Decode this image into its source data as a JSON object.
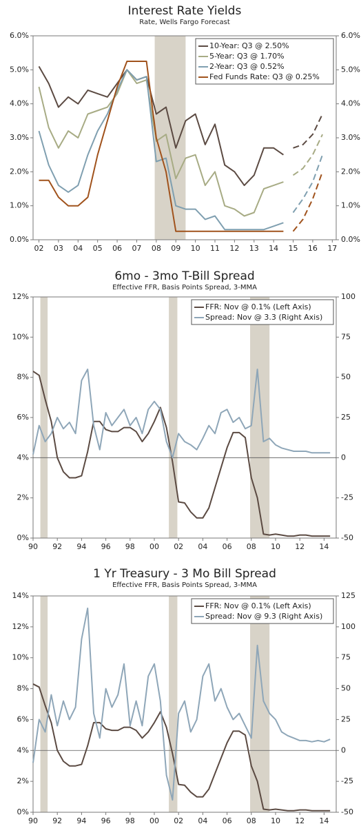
{
  "chart_data": [
    {
      "type": "line",
      "title": "Interest Rate Yields",
      "subtitle": "Rate, Wells Fargo Forecast",
      "x": [
        2002,
        2002.5,
        2003,
        2003.5,
        2004,
        2004.5,
        2005,
        2005.5,
        2006,
        2006.5,
        2007,
        2007.5,
        2008,
        2008.5,
        2009,
        2009.5,
        2010,
        2010.5,
        2011,
        2011.5,
        2012,
        2012.5,
        2013,
        2013.5,
        2014,
        2014.5,
        2015,
        2015.5,
        2016,
        2016.5
      ],
      "series": [
        {
          "name": "10-Year: Q3 @ 2.50%",
          "color": "#5b4a42",
          "values": [
            5.1,
            4.6,
            3.9,
            4.2,
            4.0,
            4.4,
            4.3,
            4.2,
            4.6,
            5.0,
            4.7,
            4.8,
            3.7,
            3.9,
            2.7,
            3.5,
            3.7,
            2.8,
            3.4,
            2.2,
            2.0,
            1.6,
            1.9,
            2.7,
            2.7,
            2.5,
            2.7,
            2.8,
            3.1,
            3.7
          ]
        },
        {
          "name": "5-Year: Q3 @ 1.70%",
          "color": "#a7ab84",
          "values": [
            4.5,
            3.3,
            2.7,
            3.2,
            3.0,
            3.7,
            3.8,
            3.9,
            4.3,
            5.0,
            4.6,
            4.7,
            2.9,
            3.1,
            1.8,
            2.4,
            2.5,
            1.6,
            2.0,
            1.0,
            0.9,
            0.7,
            0.8,
            1.5,
            1.6,
            1.7,
            1.9,
            2.1,
            2.5,
            3.1
          ]
        },
        {
          "name": "2-Year: Q3 @ 0.52%",
          "color": "#7f9fb0",
          "values": [
            3.2,
            2.2,
            1.6,
            1.4,
            1.6,
            2.5,
            3.2,
            3.7,
            4.4,
            5.0,
            4.7,
            4.8,
            2.3,
            2.4,
            1.0,
            0.9,
            0.9,
            0.6,
            0.7,
            0.3,
            0.3,
            0.3,
            0.3,
            0.3,
            0.4,
            0.5,
            0.8,
            1.2,
            1.7,
            2.5
          ]
        },
        {
          "name": "Fed Funds Rate: Q3 @ 0.25%",
          "color": "#a0521c",
          "values": [
            1.75,
            1.75,
            1.25,
            1.0,
            1.0,
            1.25,
            2.5,
            3.5,
            4.5,
            5.25,
            5.25,
            5.25,
            3.0,
            2.0,
            0.25,
            0.25,
            0.25,
            0.25,
            0.25,
            0.25,
            0.25,
            0.25,
            0.25,
            0.25,
            0.25,
            0.25,
            0.25,
            0.6,
            1.2,
            2.0
          ]
        }
      ],
      "dashed_from": 2015,
      "shading": [
        [
          2007.92,
          2009.5
        ]
      ],
      "xlim": [
        2001.7,
        2017.2
      ],
      "xticks": [
        {
          "value": 2002,
          "label": "02"
        },
        {
          "value": 2003,
          "label": "03"
        },
        {
          "value": 2004,
          "label": "04"
        },
        {
          "value": 2005,
          "label": "05"
        },
        {
          "value": 2006,
          "label": "06"
        },
        {
          "value": 2007,
          "label": "07"
        },
        {
          "value": 2008,
          "label": "08"
        },
        {
          "value": 2009,
          "label": "09"
        },
        {
          "value": 2010,
          "label": "10"
        },
        {
          "value": 2011,
          "label": "11"
        },
        {
          "value": 2012,
          "label": "12"
        },
        {
          "value": 2013,
          "label": "13"
        },
        {
          "value": 2014,
          "label": "14"
        },
        {
          "value": 2015,
          "label": "15"
        },
        {
          "value": 2016,
          "label": "16"
        },
        {
          "value": 2017,
          "label": "17"
        }
      ],
      "ylim": [
        0,
        6
      ],
      "yticks": [
        {
          "value": 0,
          "label": "0.0%"
        },
        {
          "value": 1,
          "label": "1.0%"
        },
        {
          "value": 2,
          "label": "2.0%"
        },
        {
          "value": 3,
          "label": "3.0%"
        },
        {
          "value": 4,
          "label": "4.0%"
        },
        {
          "value": 5,
          "label": "5.0%"
        },
        {
          "value": 6,
          "label": "6.0%"
        }
      ],
      "y2lim": [
        0,
        6
      ],
      "y2ticks": [
        {
          "value": 0,
          "label": "0.0%"
        },
        {
          "value": 1,
          "label": "1.0%"
        },
        {
          "value": 2,
          "label": "2.0%"
        },
        {
          "value": 3,
          "label": "3.0%"
        },
        {
          "value": 4,
          "label": "4.0%"
        },
        {
          "value": 5,
          "label": "5.0%"
        },
        {
          "value": 6,
          "label": "6.0%"
        }
      ],
      "legend": "upper right"
    },
    {
      "type": "line",
      "title": "6mo - 3mo T-Bill Spread",
      "subtitle": "Effective FFR, Basis Points Spread, 3-MMA",
      "x": [
        1990,
        1990.5,
        1991,
        1991.5,
        1992,
        1992.5,
        1993,
        1993.5,
        1994,
        1994.5,
        1995,
        1995.5,
        1996,
        1996.5,
        1997,
        1997.5,
        1998,
        1998.5,
        1999,
        1999.5,
        2000,
        2000.5,
        2001,
        2001.5,
        2002,
        2002.5,
        2003,
        2003.5,
        2004,
        2004.5,
        2005,
        2005.5,
        2006,
        2006.5,
        2007,
        2007.5,
        2008,
        2008.5,
        2009,
        2009.5,
        2010,
        2010.5,
        2011,
        2011.5,
        2012,
        2012.5,
        2013,
        2013.5,
        2014,
        2014.5
      ],
      "series": [
        {
          "name": "FFR: Nov @ 0.1% (Left Axis)",
          "color": "#5b4a42",
          "values": [
            8.3,
            8.1,
            6.9,
            5.8,
            4.0,
            3.3,
            3.0,
            3.0,
            3.1,
            4.3,
            5.8,
            5.8,
            5.4,
            5.3,
            5.3,
            5.5,
            5.5,
            5.3,
            4.8,
            5.2,
            5.8,
            6.5,
            5.5,
            3.8,
            1.8,
            1.75,
            1.3,
            1.0,
            1.0,
            1.5,
            2.5,
            3.5,
            4.5,
            5.25,
            5.25,
            5.0,
            3.0,
            2.0,
            0.2,
            0.15,
            0.2,
            0.15,
            0.1,
            0.1,
            0.15,
            0.15,
            0.1,
            0.1,
            0.1,
            0.1
          ]
        },
        {
          "name": "Spread: Nov @ 3.3 (Right Axis)",
          "color": "#8ea6b8",
          "axis": "y2",
          "values": [
            2,
            20,
            10,
            15,
            25,
            18,
            22,
            15,
            48,
            55,
            20,
            5,
            28,
            20,
            25,
            30,
            20,
            25,
            15,
            30,
            35,
            30,
            10,
            0,
            15,
            10,
            8,
            5,
            12,
            20,
            15,
            28,
            30,
            22,
            25,
            18,
            20,
            55,
            10,
            12,
            8,
            6,
            5,
            4,
            4,
            4,
            3,
            3,
            3,
            3
          ]
        }
      ],
      "shading": [
        [
          1990.6,
          1991.2
        ],
        [
          2001.2,
          2001.9
        ],
        [
          2007.9,
          2009.5
        ]
      ],
      "reference_y2": 0,
      "xlim": [
        1990,
        2015
      ],
      "xticks": [
        {
          "value": 1990,
          "label": "90"
        },
        {
          "value": 1992,
          "label": "92"
        },
        {
          "value": 1994,
          "label": "94"
        },
        {
          "value": 1996,
          "label": "96"
        },
        {
          "value": 1998,
          "label": "98"
        },
        {
          "value": 2000,
          "label": "00"
        },
        {
          "value": 2002,
          "label": "02"
        },
        {
          "value": 2004,
          "label": "04"
        },
        {
          "value": 2006,
          "label": "06"
        },
        {
          "value": 2008,
          "label": "08"
        },
        {
          "value": 2010,
          "label": "10"
        },
        {
          "value": 2012,
          "label": "12"
        },
        {
          "value": 2014,
          "label": "14"
        }
      ],
      "ylim": [
        0,
        12
      ],
      "yticks": [
        {
          "value": 0,
          "label": "0%"
        },
        {
          "value": 2,
          "label": "2%"
        },
        {
          "value": 4,
          "label": "4%"
        },
        {
          "value": 6,
          "label": "6%"
        },
        {
          "value": 8,
          "label": "8%"
        },
        {
          "value": 10,
          "label": "10%"
        },
        {
          "value": 12,
          "label": "12%"
        }
      ],
      "y2lim": [
        -50,
        100
      ],
      "y2ticks": [
        -50,
        -25,
        0,
        25,
        50,
        75,
        100
      ],
      "legend": "upper right"
    },
    {
      "type": "line",
      "title": "1 Yr Treasury - 3 Mo Bill Spread",
      "subtitle": "Effective FFR, Basis Points Spread, 3-MMA",
      "x": [
        1990,
        1990.5,
        1991,
        1991.5,
        1992,
        1992.5,
        1993,
        1993.5,
        1994,
        1994.5,
        1995,
        1995.5,
        1996,
        1996.5,
        1997,
        1997.5,
        1998,
        1998.5,
        1999,
        1999.5,
        2000,
        2000.5,
        2001,
        2001.5,
        2002,
        2002.5,
        2003,
        2003.5,
        2004,
        2004.5,
        2005,
        2005.5,
        2006,
        2006.5,
        2007,
        2007.5,
        2008,
        2008.5,
        2009,
        2009.5,
        2010,
        2010.5,
        2011,
        2011.5,
        2012,
        2012.5,
        2013,
        2013.5,
        2014,
        2014.5
      ],
      "series": [
        {
          "name": "FFR: Nov @ 0.1% (Left Axis)",
          "color": "#5b4a42",
          "values": [
            8.3,
            8.1,
            6.9,
            5.8,
            4.0,
            3.3,
            3.0,
            3.0,
            3.1,
            4.3,
            5.8,
            5.8,
            5.4,
            5.3,
            5.3,
            5.5,
            5.5,
            5.3,
            4.8,
            5.2,
            5.8,
            6.5,
            5.5,
            3.8,
            1.8,
            1.75,
            1.3,
            1.0,
            1.0,
            1.5,
            2.5,
            3.5,
            4.5,
            5.25,
            5.25,
            5.0,
            3.0,
            2.0,
            0.2,
            0.15,
            0.2,
            0.15,
            0.1,
            0.1,
            0.15,
            0.15,
            0.1,
            0.1,
            0.1,
            0.1
          ]
        },
        {
          "name": "Spread: Nov @ 9.3 (Right Axis)",
          "color": "#8ea6b8",
          "axis": "y2",
          "values": [
            -10,
            25,
            15,
            45,
            20,
            40,
            25,
            35,
            90,
            115,
            30,
            10,
            50,
            35,
            45,
            70,
            20,
            40,
            20,
            60,
            70,
            40,
            -20,
            -40,
            30,
            40,
            15,
            25,
            60,
            70,
            40,
            50,
            35,
            25,
            30,
            20,
            10,
            85,
            40,
            30,
            25,
            15,
            12,
            10,
            8,
            8,
            7,
            8,
            7,
            9
          ]
        }
      ],
      "shading": [
        [
          1990.6,
          1991.2
        ],
        [
          2001.2,
          2001.9
        ],
        [
          2007.9,
          2009.5
        ]
      ],
      "reference_y2": 0,
      "xlim": [
        1990,
        2015
      ],
      "xticks": [
        {
          "value": 1990,
          "label": "90"
        },
        {
          "value": 1992,
          "label": "92"
        },
        {
          "value": 1994,
          "label": "94"
        },
        {
          "value": 1996,
          "label": "96"
        },
        {
          "value": 1998,
          "label": "98"
        },
        {
          "value": 2000,
          "label": "00"
        },
        {
          "value": 2002,
          "label": "02"
        },
        {
          "value": 2004,
          "label": "04"
        },
        {
          "value": 2006,
          "label": "06"
        },
        {
          "value": 2008,
          "label": "08"
        },
        {
          "value": 2010,
          "label": "10"
        },
        {
          "value": 2012,
          "label": "12"
        },
        {
          "value": 2014,
          "label": "14"
        }
      ],
      "ylim": [
        0,
        14
      ],
      "yticks": [
        {
          "value": 0,
          "label": "0%"
        },
        {
          "value": 2,
          "label": "2%"
        },
        {
          "value": 4,
          "label": "4%"
        },
        {
          "value": 6,
          "label": "6%"
        },
        {
          "value": 8,
          "label": "8%"
        },
        {
          "value": 10,
          "label": "10%"
        },
        {
          "value": 12,
          "label": "12%"
        },
        {
          "value": 14,
          "label": "14%"
        }
      ],
      "y2lim": [
        -50,
        125
      ],
      "y2ticks": [
        -50,
        -25,
        0,
        25,
        50,
        75,
        100,
        125
      ],
      "legend": "upper right"
    }
  ]
}
